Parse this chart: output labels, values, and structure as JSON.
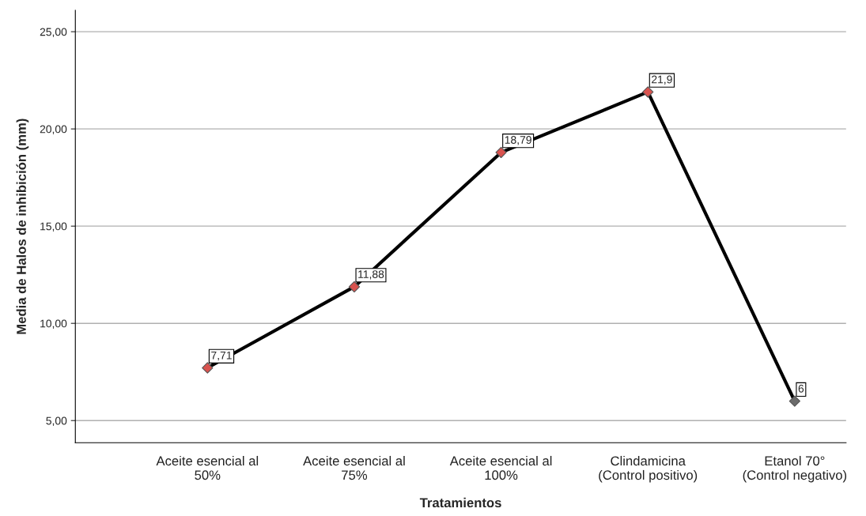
{
  "chart_data": {
    "type": "line",
    "xlabel": "Tratamientos",
    "ylabel": "Media de Halos de inhibición (mm)",
    "categories": [
      "Aceite esencial al\n50%",
      "Aceite esencial al\n75%",
      "Aceite esencial al\n100%",
      "Clindamicina\n(Control positivo)",
      "Etanol 70°\n(Control negativo)"
    ],
    "series": [
      {
        "color": "#000000",
        "values": [
          7.71,
          11.88,
          18.79,
          21.9,
          6
        ],
        "colors": [
          "#d9534f",
          "#d9534f",
          "#d9534f",
          "#d9534f",
          "#6b6b6b"
        ],
        "value_labels": [
          "7,71",
          "11,88",
          "18,79",
          "21,9",
          "6"
        ]
      }
    ],
    "marker": "diamond",
    "line_style": "solid",
    "ylim": [
      3.86,
      26.1
    ],
    "yticks": [
      {
        "value": 5,
        "label": "5,00"
      },
      {
        "value": 10,
        "label": "10,00"
      },
      {
        "value": 15,
        "label": "15,00"
      },
      {
        "value": 20,
        "label": "20,00"
      },
      {
        "value": 25,
        "label": "25,00"
      }
    ],
    "grid": "y",
    "legend": false
  }
}
